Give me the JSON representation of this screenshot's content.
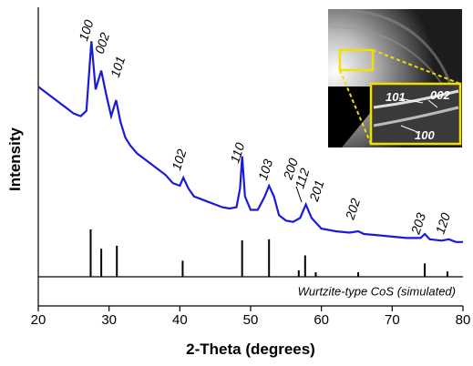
{
  "chart_data": {
    "type": "line",
    "x_label": "2-Theta (degrees)",
    "y_label": "Intensity",
    "xlim": [
      20,
      80
    ],
    "xticks": [
      20,
      30,
      40,
      50,
      60,
      70,
      80
    ],
    "ylim": [
      0,
      100
    ],
    "series": [
      {
        "color": "#1a1adb",
        "x": [
          20,
          21,
          22,
          23,
          24,
          25,
          26,
          26.8,
          27.5,
          28.1,
          28.9,
          29.6,
          30.3,
          31.0,
          31.6,
          32.3,
          33,
          34,
          35,
          36,
          37,
          38,
          39,
          40,
          40.5,
          41.2,
          42,
          43,
          44,
          45,
          46,
          47,
          48,
          48.5,
          48.8,
          49.2,
          50,
          51,
          52,
          52.6,
          53.3,
          54,
          55,
          56,
          57,
          57.8,
          58.6,
          59.3,
          60,
          62,
          64,
          65.2,
          66,
          68,
          70,
          72,
          74,
          74.6,
          75.3,
          77,
          78,
          79,
          80
        ],
        "values": [
          71,
          69,
          67,
          65,
          63,
          61,
          60,
          62,
          88,
          70,
          77,
          68,
          60,
          66,
          58,
          52,
          49,
          46,
          44,
          42,
          40,
          38,
          35,
          34,
          37,
          33,
          30,
          29,
          28,
          27,
          26,
          25.5,
          26,
          33,
          45,
          30,
          25,
          25,
          30,
          34,
          30,
          23,
          21,
          20.5,
          22,
          27,
          22,
          20,
          18,
          17,
          16.5,
          17,
          16,
          15.5,
          15,
          14.5,
          14.5,
          16,
          14,
          13.5,
          14,
          13,
          13
        ]
      }
    ],
    "reference": {
      "name": "Wurtzite-type CoS (simulated)",
      "color": "#000000",
      "positions": [
        27.4,
        28.9,
        31.1,
        40.4,
        48.8,
        52.6,
        56.8,
        57.7,
        59.2,
        65.2,
        74.6,
        77.8
      ],
      "values": [
        17.7,
        10.5,
        11.6,
        6,
        13.6,
        14,
        2.4,
        8,
        1.7,
        1.7,
        5,
        2
      ],
      "labels": [
        "100",
        "002",
        "101",
        "102",
        "110",
        "103",
        "200",
        "112",
        "201",
        "202",
        "203",
        "120"
      ]
    },
    "inset": {
      "labels": [
        "101",
        "002",
        "100"
      ]
    }
  }
}
